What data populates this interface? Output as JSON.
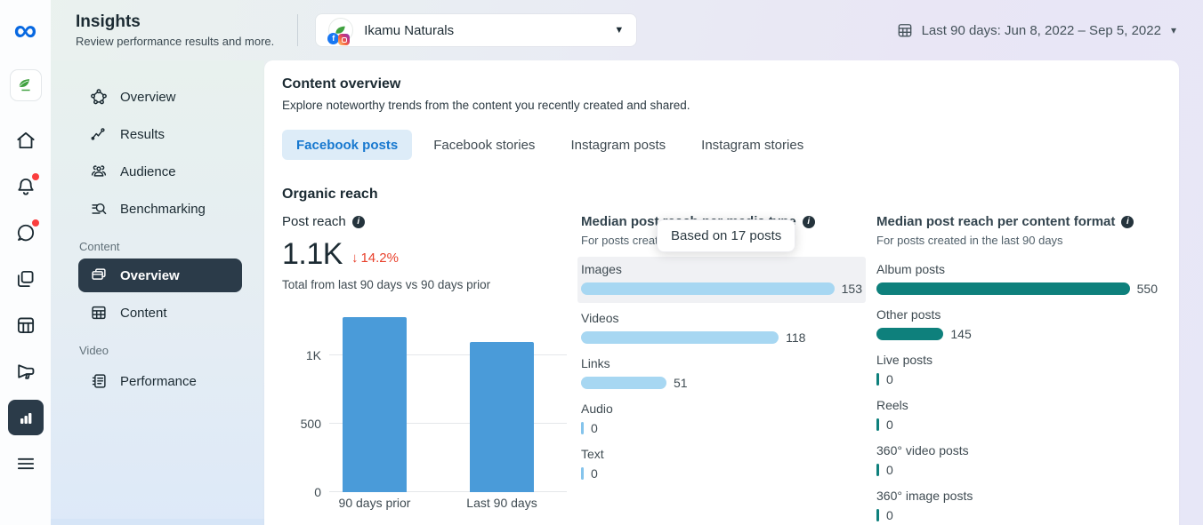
{
  "header": {
    "title": "Insights",
    "subtitle": "Review performance results and more.",
    "account_selector": {
      "name": "Ikamu Naturals"
    },
    "date_range": {
      "label": "Last 90 days: Jun 8, 2022 – Sep 5, 2022"
    }
  },
  "rail": {
    "items": [
      {
        "name": "business-avatar"
      },
      {
        "name": "home"
      },
      {
        "name": "notifications",
        "badge": true
      },
      {
        "name": "messages",
        "badge": true
      },
      {
        "name": "posts"
      },
      {
        "name": "planner"
      },
      {
        "name": "ads"
      },
      {
        "name": "insights",
        "selected": true
      },
      {
        "name": "more-menu"
      }
    ]
  },
  "sidebar": {
    "items": [
      {
        "label": "Overview"
      },
      {
        "label": "Results"
      },
      {
        "label": "Audience"
      },
      {
        "label": "Benchmarking"
      }
    ],
    "sections": [
      {
        "label": "Content",
        "items": [
          {
            "label": "Overview",
            "selected": true
          },
          {
            "label": "Content",
            "selected": false
          }
        ]
      },
      {
        "label": "Video",
        "items": [
          {
            "label": "Performance",
            "selected": false
          }
        ]
      }
    ]
  },
  "main": {
    "title": "Content overview",
    "subtitle": "Explore noteworthy trends from the content you recently created and shared.",
    "tabs": [
      {
        "label": "Facebook posts",
        "selected": true
      },
      {
        "label": "Facebook stories",
        "selected": false
      },
      {
        "label": "Instagram posts",
        "selected": false
      },
      {
        "label": "Instagram stories",
        "selected": false
      }
    ],
    "section_title": "Organic reach",
    "post_reach": {
      "label": "Post reach",
      "value": "1.1K",
      "change_direction": "down",
      "change": "14.2%",
      "caption": "Total from last 90 days vs 90 days prior"
    },
    "tooltip": "Based on 17 posts"
  },
  "chart_data": [
    {
      "type": "bar",
      "title": "Post reach",
      "categories": [
        "90 days prior",
        "Last 90 days"
      ],
      "values": [
        1280,
        1100
      ],
      "yticks": [
        "0",
        "500",
        "1K"
      ],
      "ylim": [
        0,
        1300
      ],
      "bar_color": "#4a9bd9",
      "grid": true
    },
    {
      "type": "bar",
      "orientation": "horizontal",
      "title": "Median post reach per media type",
      "subtitle": "For posts created in the last 90 days",
      "categories": [
        "Images",
        "Videos",
        "Links",
        "Audio",
        "Text"
      ],
      "values": [
        153,
        118,
        51,
        0,
        0
      ],
      "highlighted_category": "Images",
      "bar_color": "#a7d7f2"
    },
    {
      "type": "bar",
      "orientation": "horizontal",
      "title": "Median post reach per content format",
      "subtitle": "For posts created in the last 90 days",
      "categories": [
        "Album posts",
        "Other posts",
        "Live posts",
        "Reels",
        "360° video posts",
        "360° image posts"
      ],
      "values": [
        550,
        145,
        0,
        0,
        0,
        0
      ],
      "bar_color": "#0e807c"
    }
  ],
  "icons": {
    "meta": "∞",
    "facebook_badge": "f",
    "caret_down": "▾",
    "selector_caret": "▼",
    "arrow_down": "↓",
    "info": "i"
  },
  "colors": {
    "accent_blue": "#4a9bd9",
    "light_blue_bar": "#a7d7f2",
    "teal_bar": "#0e807c",
    "negative_red": "#e8412c",
    "selected_tab_blue": "#1778cf",
    "dark_slate": "#2b3b49",
    "meta_blue": "#0768e1"
  }
}
